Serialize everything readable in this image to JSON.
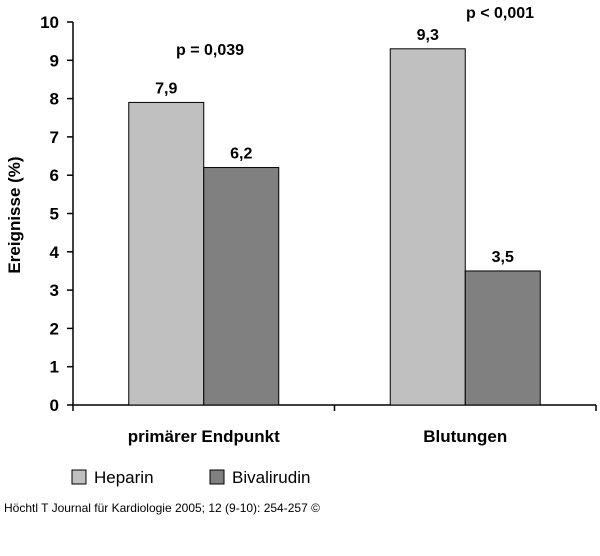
{
  "chart_data": {
    "type": "bar",
    "categories": [
      "primärer Endpunkt",
      "Blutungen"
    ],
    "series": [
      {
        "name": "Heparin",
        "values": [
          7.9,
          9.3
        ],
        "labels": [
          "7,9",
          "9,3"
        ],
        "color": "#c0c0c0"
      },
      {
        "name": "Bivalirudin",
        "values": [
          6.2,
          3.5
        ],
        "labels": [
          "6,2",
          "3,5"
        ],
        "color": "#808080"
      }
    ],
    "ylabel": "Ereignisse (%)",
    "ylim": [
      0,
      10
    ],
    "yticks": [
      0,
      1,
      2,
      3,
      4,
      5,
      6,
      7,
      8,
      9,
      10
    ],
    "annotations": [
      "p = 0,039",
      "p < 0,001"
    ],
    "legend_position": "bottom-left",
    "grid": false
  },
  "source": "Höchtl T Journal für Kardiologie 2005; 12 (9-10): 254-257 ©"
}
